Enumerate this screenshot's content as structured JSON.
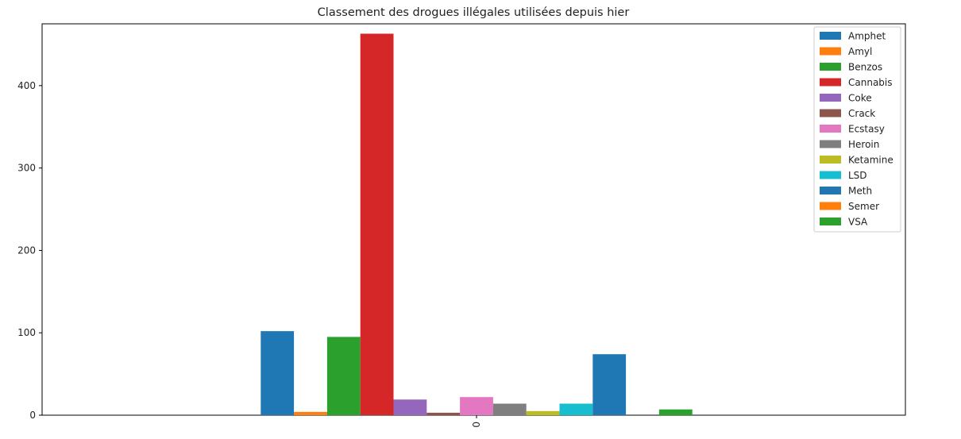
{
  "chart_data": {
    "type": "bar",
    "title": "Classement des drogues illégales utilisées depuis hier",
    "xlabel": "",
    "ylabel": "",
    "categories": [
      "0"
    ],
    "ylim": [
      0,
      475
    ],
    "yticks": [
      0,
      100,
      200,
      300,
      400
    ],
    "grid": false,
    "legend_position": "top-right",
    "series": [
      {
        "name": "Amphet",
        "values": [
          102
        ],
        "color": "#1f77b4"
      },
      {
        "name": "Amyl",
        "values": [
          4
        ],
        "color": "#ff7f0e"
      },
      {
        "name": "Benzos",
        "values": [
          95
        ],
        "color": "#2ca02c"
      },
      {
        "name": "Cannabis",
        "values": [
          463
        ],
        "color": "#d62728"
      },
      {
        "name": "Coke",
        "values": [
          19
        ],
        "color": "#9467bd"
      },
      {
        "name": "Crack",
        "values": [
          3
        ],
        "color": "#8c564b"
      },
      {
        "name": "Ecstasy",
        "values": [
          22
        ],
        "color": "#e377c2"
      },
      {
        "name": "Heroin",
        "values": [
          14
        ],
        "color": "#7f7f7f"
      },
      {
        "name": "Ketamine",
        "values": [
          5
        ],
        "color": "#bcbd22"
      },
      {
        "name": "LSD",
        "values": [
          14
        ],
        "color": "#17becf"
      },
      {
        "name": "Meth",
        "values": [
          74
        ],
        "color": "#1f77b4"
      },
      {
        "name": "Semer",
        "values": [
          0
        ],
        "color": "#ff7f0e"
      },
      {
        "name": "VSA",
        "values": [
          7
        ],
        "color": "#2ca02c"
      }
    ]
  }
}
